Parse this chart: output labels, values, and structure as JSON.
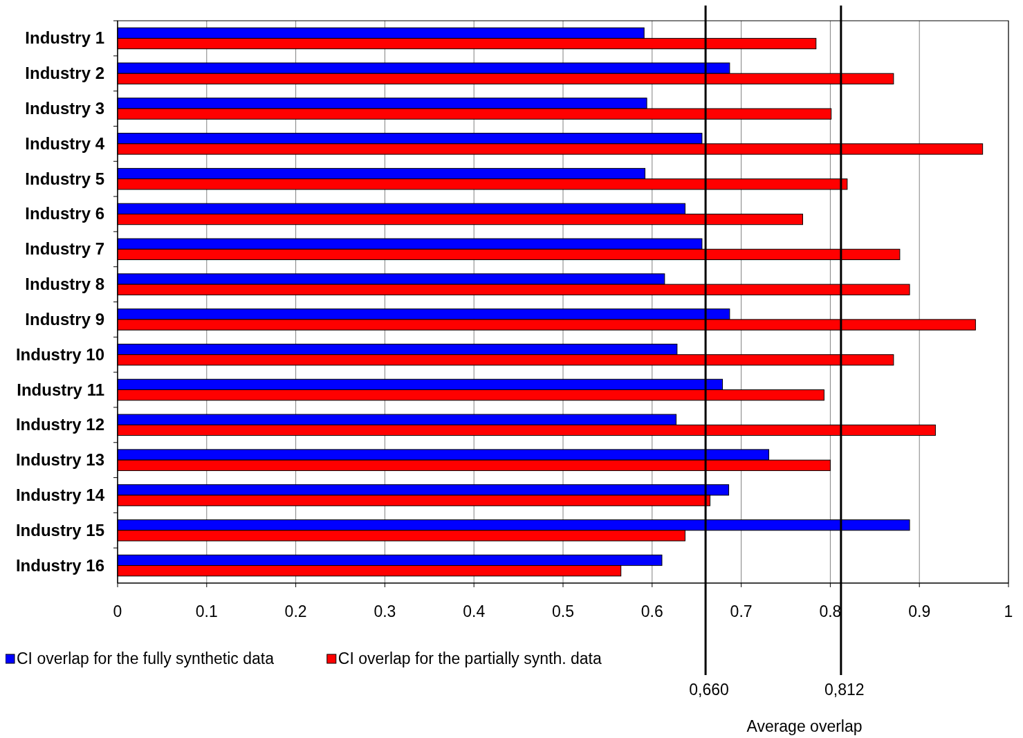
{
  "chart_data": {
    "type": "bar",
    "orientation": "horizontal",
    "categories": [
      "Industry 1",
      "Industry 2",
      "Industry 3",
      "Industry 4",
      "Industry 5",
      "Industry 6",
      "Industry 7",
      "Industry 8",
      "Industry 9",
      "Industry 10",
      "Industry 11",
      "Industry 12",
      "Industry 13",
      "Industry 14",
      "Industry 15",
      "Industry 16"
    ],
    "series": [
      {
        "name": "CI overlap for the fully synthetic data",
        "color": "#0000ff",
        "values": [
          0.591,
          0.687,
          0.594,
          0.656,
          0.592,
          0.637,
          0.656,
          0.614,
          0.687,
          0.628,
          0.679,
          0.627,
          0.731,
          0.686,
          0.889,
          0.611
        ]
      },
      {
        "name": "CI overlap for the partially synth. data",
        "color": "#ff0000",
        "values": [
          0.784,
          0.871,
          0.801,
          0.971,
          0.819,
          0.769,
          0.878,
          0.889,
          0.963,
          0.871,
          0.793,
          0.918,
          0.8,
          0.665,
          0.637,
          0.565
        ]
      }
    ],
    "xlim": [
      0,
      1
    ],
    "xticks": [
      0,
      0.1,
      0.2,
      0.3,
      0.4,
      0.5,
      0.6,
      0.7,
      0.8,
      0.9,
      1
    ],
    "grid": "x",
    "legend": "bottom left",
    "ref_lines": [
      {
        "axis": "x",
        "value": 0.66,
        "label": "0,660",
        "color": "#000000"
      },
      {
        "axis": "x",
        "value": 0.812,
        "label": "0,812",
        "color": "#000000"
      }
    ],
    "annotations": [
      "Average overlap"
    ]
  }
}
